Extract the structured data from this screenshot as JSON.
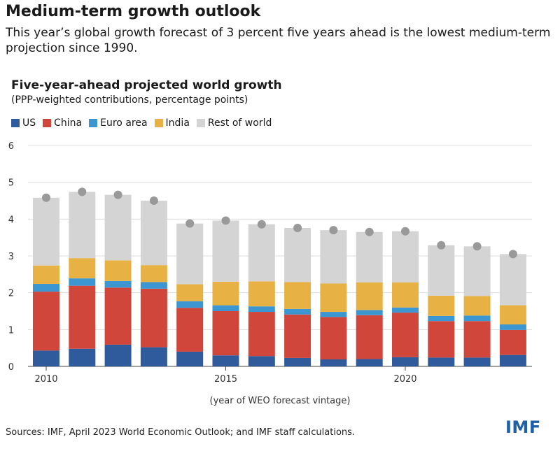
{
  "header": {
    "headline": "Medium-term growth outlook",
    "subhead": "This year’s global growth forecast of 3 percent five years ahead is the lowest medium-term projection since 1990."
  },
  "footer": {
    "source": "Sources: IMF, April 2023 World Economic Outlook; and IMF staff calculations.",
    "logo": "IMF"
  },
  "chart_data": {
    "type": "bar",
    "stacked": true,
    "title": "Five-year-ahead projected world growth",
    "subtitle": "(PPP-weighted contributions, percentage points)",
    "xlabel": "(year of WEO forecast vintage)",
    "ylabel": "",
    "ylim": [
      0,
      6
    ],
    "yticks": [
      0,
      1,
      2,
      3,
      4,
      5,
      6
    ],
    "x": [
      2010,
      2011,
      2012,
      2013,
      2014,
      2015,
      2016,
      2017,
      2018,
      2019,
      2020,
      2021,
      2022,
      2023
    ],
    "xtick_labels": [
      {
        "x": 2010,
        "label": "2010"
      },
      {
        "x": 2015,
        "label": "2015"
      },
      {
        "x": 2020,
        "label": "2020"
      }
    ],
    "grid": true,
    "legend_position": "top-left",
    "series": [
      {
        "name": "US",
        "color": "#2f5a9c",
        "values": [
          0.43,
          0.48,
          0.59,
          0.52,
          0.4,
          0.3,
          0.28,
          0.23,
          0.19,
          0.2,
          0.25,
          0.24,
          0.24,
          0.31
        ]
      },
      {
        "name": "China",
        "color": "#d1463a",
        "values": [
          1.6,
          1.71,
          1.55,
          1.59,
          1.19,
          1.2,
          1.2,
          1.18,
          1.15,
          1.19,
          1.21,
          0.99,
          0.99,
          0.68
        ]
      },
      {
        "name": "Euro area",
        "color": "#3b96d2",
        "values": [
          0.21,
          0.2,
          0.18,
          0.18,
          0.18,
          0.16,
          0.15,
          0.15,
          0.14,
          0.14,
          0.14,
          0.14,
          0.15,
          0.15
        ]
      },
      {
        "name": "India",
        "color": "#e7b243",
        "values": [
          0.5,
          0.55,
          0.56,
          0.46,
          0.46,
          0.64,
          0.68,
          0.73,
          0.77,
          0.75,
          0.68,
          0.55,
          0.53,
          0.52
        ]
      },
      {
        "name": "Rest of world",
        "color": "#d4d4d4",
        "values": [
          1.84,
          1.8,
          1.78,
          1.75,
          1.65,
          1.66,
          1.55,
          1.47,
          1.45,
          1.37,
          1.39,
          1.37,
          1.35,
          1.39
        ]
      }
    ],
    "totals": [
      4.58,
      4.74,
      4.66,
      4.5,
      3.88,
      3.96,
      3.86,
      3.76,
      3.7,
      3.65,
      3.67,
      3.29,
      3.26,
      3.05
    ],
    "total_marker_color": "#999999"
  }
}
